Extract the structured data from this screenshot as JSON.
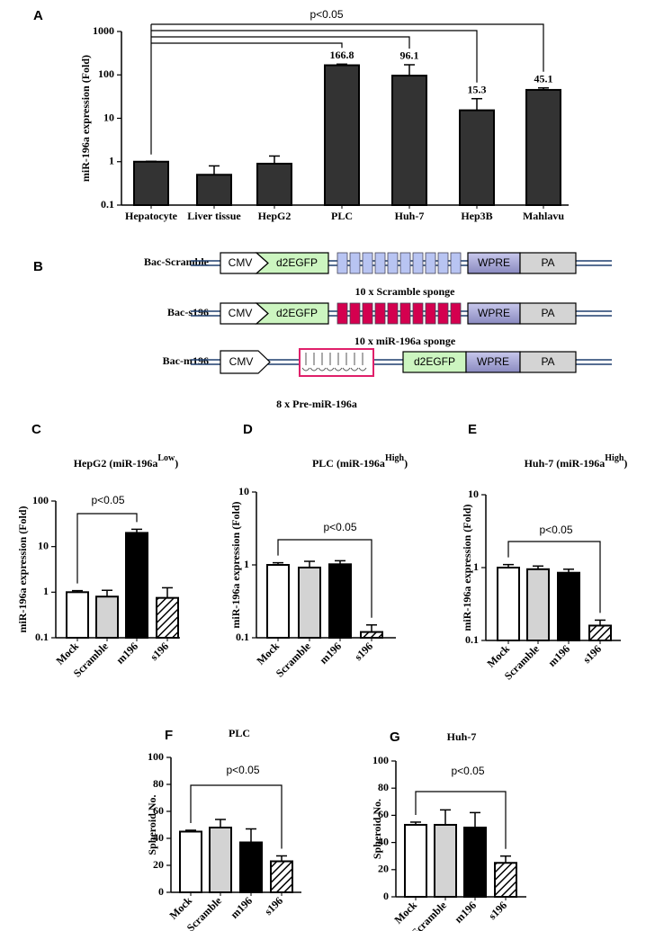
{
  "chart_data": [
    {
      "type": "bar",
      "label": "A",
      "ylabel": "miR-196a expression (Fold)",
      "log_scale": true,
      "categories": [
        "Hepatocyte",
        "Liver tissue",
        "HepG2",
        "PLC",
        "Huh-7",
        "Hep3B",
        "Mahlavu"
      ],
      "values": [
        1,
        0.5,
        0.9,
        166.8,
        96.1,
        15.3,
        45.1
      ],
      "errors": [
        0.02,
        0.3,
        0.45,
        10,
        75,
        13,
        5
      ],
      "value_labels": [
        null,
        null,
        null,
        "166.8",
        "96.1",
        "15.3",
        "45.1"
      ],
      "colors": [
        "#333333",
        "#333333",
        "#333333",
        "#333333",
        "#333333",
        "#333333",
        "#333333"
      ],
      "ylim": [
        0.1,
        1000
      ],
      "yticks": [
        0.1,
        1,
        10,
        100,
        1000
      ],
      "annotation": "p<0.05"
    },
    {
      "type": "bar",
      "label": "C",
      "title": {
        "text": "HepG2  (miR-196a",
        "sup": "Low",
        "end": ")"
      },
      "ylabel": "miR-196a expression (Fold)",
      "log_scale": true,
      "categories": [
        "Mock",
        "Scramble",
        "m196",
        "s196"
      ],
      "values": [
        1.0,
        0.8,
        20,
        0.75
      ],
      "errors": [
        0.08,
        0.3,
        4,
        0.5
      ],
      "colors": [
        "#ffffff",
        "#d3d3d3",
        "#000000",
        "hatch"
      ],
      "ylim": [
        0.1,
        100
      ],
      "yticks": [
        0.1,
        1,
        10,
        100
      ],
      "annotation": "p<0.05"
    },
    {
      "type": "bar",
      "label": "D",
      "title": {
        "text": "PLC (miR-196a",
        "sup": "High",
        "end": ")"
      },
      "ylabel": "miR-196a expression (Fold)",
      "log_scale": true,
      "categories": [
        "Mock",
        "Scramble",
        "m196",
        "s196"
      ],
      "values": [
        1.0,
        0.92,
        1.02,
        0.12
      ],
      "errors": [
        0.07,
        0.2,
        0.12,
        0.03
      ],
      "colors": [
        "#ffffff",
        "#d3d3d3",
        "#000000",
        "hatch"
      ],
      "ylim": [
        0.1,
        10
      ],
      "yticks": [
        0.1,
        1,
        10
      ],
      "annotation": "p<0.05"
    },
    {
      "type": "bar",
      "label": "E",
      "title": {
        "text": "Huh-7 (miR-196a",
        "sup": "High",
        "end": ")"
      },
      "ylabel": "miR-196a expression (Fold)",
      "log_scale": true,
      "categories": [
        "Mock",
        "Scramble",
        "m196",
        "s196"
      ],
      "values": [
        1.0,
        0.95,
        0.85,
        0.16
      ],
      "errors": [
        0.1,
        0.1,
        0.1,
        0.03
      ],
      "colors": [
        "#ffffff",
        "#d3d3d3",
        "#000000",
        "hatch"
      ],
      "ylim": [
        0.1,
        10
      ],
      "yticks": [
        0.1,
        1,
        10
      ],
      "annotation": "p<0.05"
    },
    {
      "type": "bar",
      "label": "F",
      "title": {
        "text": "PLC"
      },
      "ylabel": "Spheroid No.",
      "log_scale": false,
      "categories": [
        "Mock",
        "Scramble",
        "m196",
        "s196"
      ],
      "values": [
        45,
        48,
        37,
        23
      ],
      "errors": [
        1,
        6,
        10,
        4
      ],
      "colors": [
        "#ffffff",
        "#d3d3d3",
        "#000000",
        "hatch"
      ],
      "ylim": [
        0,
        100
      ],
      "yticks": [
        0,
        20,
        40,
        60,
        80,
        100
      ],
      "annotation": "p<0.05"
    },
    {
      "type": "bar",
      "label": "G",
      "title": {
        "text": "Huh-7"
      },
      "ylabel": "Spheroid No.",
      "log_scale": false,
      "categories": [
        "Mock",
        "Scramble",
        "m196",
        "s196"
      ],
      "values": [
        53,
        53,
        51,
        25
      ],
      "errors": [
        2,
        11,
        11,
        5
      ],
      "colors": [
        "#ffffff",
        "#d3d3d3",
        "#000000",
        "hatch"
      ],
      "ylim": [
        0,
        100
      ],
      "yticks": [
        0,
        20,
        40,
        60,
        80,
        100
      ],
      "annotation": "p<0.05"
    }
  ],
  "diagram": {
    "label": "B",
    "elements": {
      "promoter": "CMV",
      "reporter": "d2EGFP",
      "wpre": "WPRE",
      "pa": "PA"
    },
    "rows": [
      {
        "name": "Bac-Scramble",
        "caption": "10 x Scramble sponge"
      },
      {
        "name": "Bac-s196",
        "caption": "10 x miR-196a sponge"
      },
      {
        "name": "Bac-m196",
        "caption": "8 x Pre-miR-196a"
      }
    ]
  }
}
